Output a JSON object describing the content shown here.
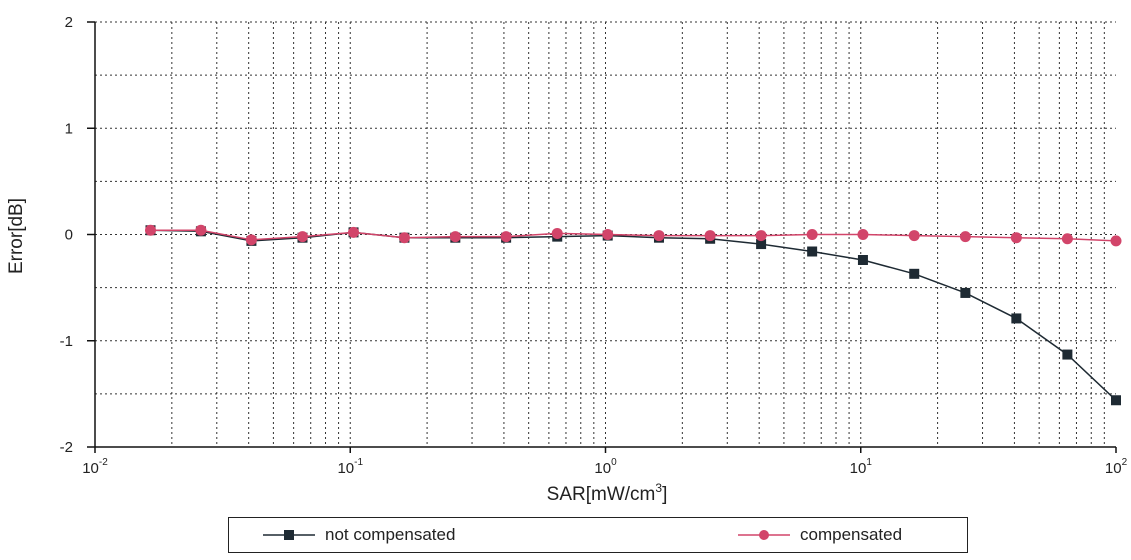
{
  "chart_data": {
    "type": "line",
    "title": "",
    "xlabel": "SAR[mW/cm",
    "xlabel_sup": "3",
    "xlabel_close": "]",
    "ylabel": "Error[dB]",
    "x_scale": "log",
    "xlim": [
      0.01,
      100
    ],
    "ylim": [
      -2,
      2
    ],
    "grid": true,
    "grid_style": "dotted",
    "legend_position": "bottom",
    "x_ticks": [
      {
        "base": "10",
        "exp": "-2"
      },
      {
        "base": "10",
        "exp": "-1"
      },
      {
        "base": "10",
        "exp": "0"
      },
      {
        "base": "10",
        "exp": "1"
      },
      {
        "base": "10",
        "exp": "2"
      }
    ],
    "y_ticks": [
      "2",
      "1",
      "0",
      "-1",
      "-2"
    ],
    "x": [
      0.0165,
      0.026,
      0.041,
      0.065,
      0.103,
      0.163,
      0.258,
      0.408,
      0.647,
      1.02,
      1.62,
      2.57,
      4.07,
      6.45,
      10.2,
      16.2,
      25.7,
      40.7,
      64.5,
      100
    ],
    "series": [
      {
        "name": "not compensated",
        "marker": "square",
        "color": "#1e2a33",
        "values": [
          0.04,
          0.03,
          -0.06,
          -0.03,
          0.02,
          -0.03,
          -0.03,
          -0.03,
          -0.02,
          -0.01,
          -0.03,
          -0.04,
          -0.09,
          -0.16,
          -0.24,
          -0.37,
          -0.55,
          -0.79,
          -1.13,
          -1.56
        ]
      },
      {
        "name": "compensated",
        "marker": "circle",
        "color": "#d2456a",
        "values": [
          0.04,
          0.04,
          -0.05,
          -0.02,
          0.02,
          -0.03,
          -0.02,
          -0.02,
          0.01,
          0.0,
          -0.01,
          -0.01,
          -0.01,
          0.0,
          0.0,
          -0.01,
          -0.02,
          -0.03,
          -0.04,
          -0.06
        ]
      }
    ]
  }
}
